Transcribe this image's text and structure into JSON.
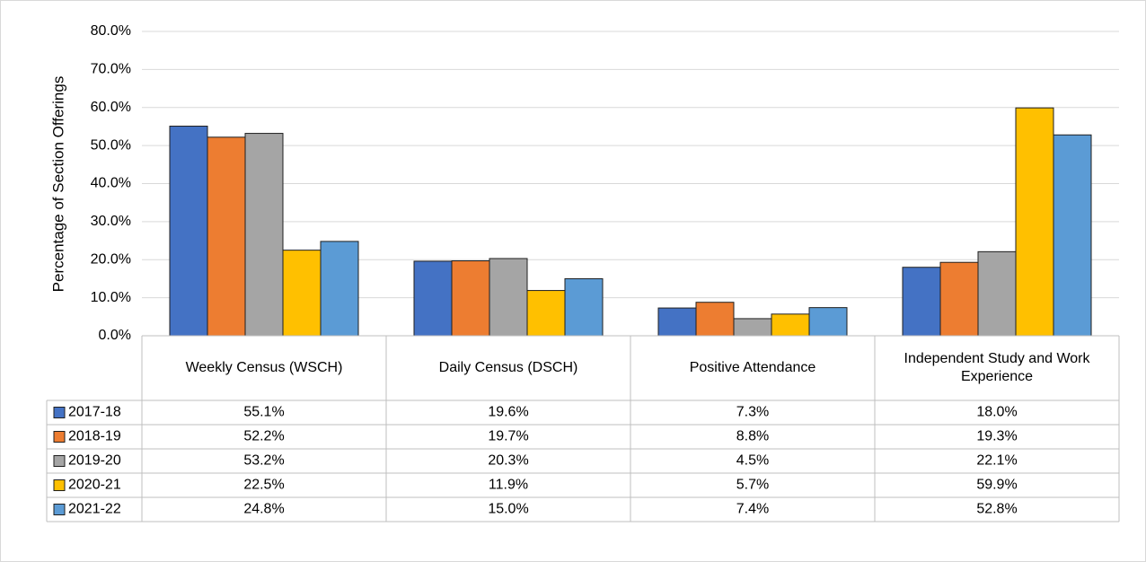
{
  "chart_data": {
    "type": "bar",
    "ylabel": "Percentage of Section Offerings",
    "categories": [
      "Weekly Census (WSCH)",
      "Daily Census (DSCH)",
      "Positive Attendance",
      "Independent Study and Work Experience"
    ],
    "series": [
      {
        "name": "2017-18",
        "color": "#4472c4",
        "values": [
          55.1,
          19.6,
          7.3,
          18.0
        ],
        "value_labels": [
          "55.1%",
          "19.6%",
          "7.3%",
          "18.0%"
        ]
      },
      {
        "name": "2018-19",
        "color": "#ed7d31",
        "values": [
          52.2,
          19.7,
          8.8,
          19.3
        ],
        "value_labels": [
          "52.2%",
          "19.7%",
          "8.8%",
          "19.3%"
        ]
      },
      {
        "name": "2019-20",
        "color": "#a5a5a5",
        "values": [
          53.2,
          20.3,
          4.5,
          22.1
        ],
        "value_labels": [
          "53.2%",
          "20.3%",
          "4.5%",
          "22.1%"
        ]
      },
      {
        "name": "2020-21",
        "color": "#ffc000",
        "values": [
          22.5,
          11.9,
          5.7,
          59.9
        ],
        "value_labels": [
          "22.5%",
          "11.9%",
          "5.7%",
          "59.9%"
        ]
      },
      {
        "name": "2021-22",
        "color": "#5b9bd5",
        "values": [
          24.8,
          15.0,
          7.4,
          52.8
        ],
        "value_labels": [
          "24.8%",
          "15.0%",
          "7.4%",
          "52.8%"
        ]
      }
    ],
    "ylim": [
      0,
      80
    ],
    "yticks": [
      {
        "value": 0,
        "label": "0.0%"
      },
      {
        "value": 10,
        "label": "10.0%"
      },
      {
        "value": 20,
        "label": "20.0%"
      },
      {
        "value": 30,
        "label": "30.0%"
      },
      {
        "value": 40,
        "label": "40.0%"
      },
      {
        "value": 50,
        "label": "50.0%"
      },
      {
        "value": 60,
        "label": "60.0%"
      },
      {
        "value": 70,
        "label": "70.0%"
      },
      {
        "value": 80,
        "label": "80.0%"
      }
    ],
    "grid": true
  }
}
